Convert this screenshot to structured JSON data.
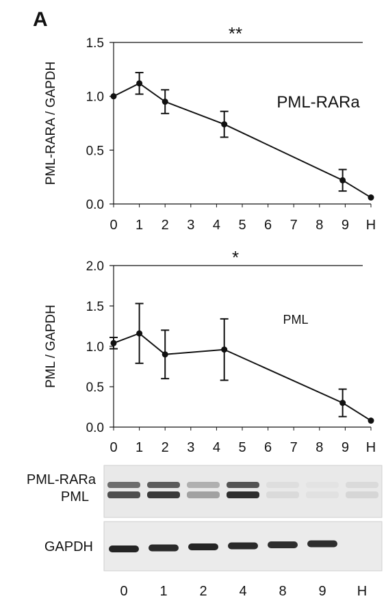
{
  "panel_label": "A",
  "chart_data": [
    {
      "type": "line",
      "x_tick_labels": [
        "0",
        "1",
        "2",
        "3",
        "4",
        "5",
        "6",
        "7",
        "8",
        "9",
        "H"
      ],
      "ylabel": "PML-RARA / GAPDH",
      "ylim": [
        0,
        1.5
      ],
      "y_ticks": [
        "0.0",
        "0.5",
        "1.0",
        "1.5"
      ],
      "annotation": "PML-RARa",
      "significance": "**",
      "grid": false,
      "points": [
        {
          "x": 0,
          "y": 1.0,
          "err": 0
        },
        {
          "x": 1,
          "y": 1.12,
          "err": 0.1
        },
        {
          "x": 2,
          "y": 0.95,
          "err": 0.11
        },
        {
          "x": 4.3,
          "y": 0.74,
          "err": 0.12
        },
        {
          "x": 8.9,
          "y": 0.22,
          "err": 0.1
        },
        {
          "x": 10,
          "y": 0.06,
          "err": 0
        }
      ]
    },
    {
      "type": "line",
      "x_tick_labels": [
        "0",
        "1",
        "2",
        "3",
        "4",
        "5",
        "6",
        "7",
        "8",
        "9",
        "H"
      ],
      "ylabel": "PML / GAPDH",
      "ylim": [
        0,
        2.0
      ],
      "y_ticks": [
        "0.0",
        "0.5",
        "1.0",
        "1.5",
        "2.0"
      ],
      "annotation": "PML",
      "significance": "*",
      "grid": false,
      "points": [
        {
          "x": 0,
          "y": 1.04,
          "err": 0.07
        },
        {
          "x": 1,
          "y": 1.16,
          "err": 0.37
        },
        {
          "x": 2,
          "y": 0.9,
          "err": 0.3
        },
        {
          "x": 4.3,
          "y": 0.96,
          "err": 0.38
        },
        {
          "x": 8.9,
          "y": 0.3,
          "err": 0.17
        },
        {
          "x": 10,
          "y": 0.08,
          "err": 0
        }
      ]
    }
  ],
  "blot": {
    "top_labels": [
      "PML-RARa",
      "PML"
    ],
    "bottom_label": "GAPDH",
    "lane_labels": [
      "0",
      "1",
      "2",
      "4",
      "8",
      "9",
      "H"
    ],
    "top_band_intensity": [
      0.75,
      0.85,
      0.35,
      0.9,
      0.08,
      0.05,
      0.1
    ],
    "gapdh_intensity": [
      0.95,
      0.92,
      0.95,
      0.92,
      0.9,
      0.9,
      0
    ]
  }
}
